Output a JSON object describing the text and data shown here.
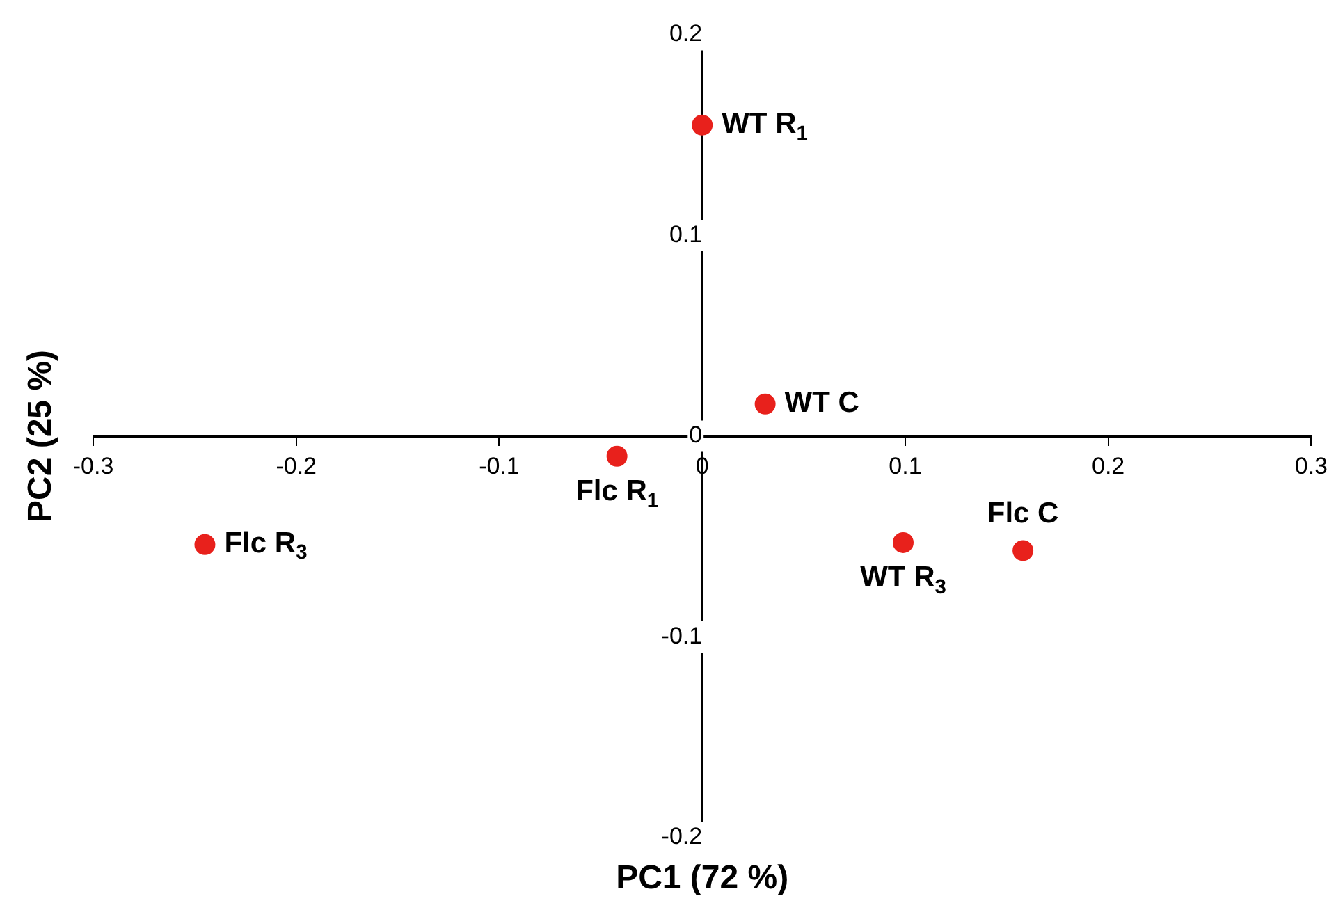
{
  "chart_data": {
    "type": "scatter",
    "xlabel": "PC1 (72 %)",
    "ylabel": "PC2 (25 %)",
    "x": [
      0.0,
      0.031,
      -0.042,
      -0.245,
      0.099,
      0.158
    ],
    "values": [
      0.155,
      0.016,
      -0.01,
      -0.054,
      -0.053,
      -0.057
    ],
    "color": "#e8211c",
    "marker": "circle",
    "grid": false,
    "legend": false,
    "xlim": [
      -0.3,
      0.3
    ],
    "xticks": [
      -0.3,
      -0.2,
      -0.1,
      0,
      0.1,
      0.2,
      0.3
    ],
    "ylim": [
      -0.2,
      0.2
    ],
    "yticks": [
      -0.2,
      -0.1,
      0,
      0.1,
      0.2
    ],
    "annotations": [
      {
        "text": "WT R$_{1}$",
        "x": 0.0,
        "y": 0.155
      },
      {
        "text": "WT C",
        "x": 0.031,
        "y": 0.016
      },
      {
        "text": "Flc R$_{1}$",
        "x": -0.042,
        "y": -0.01
      },
      {
        "text": "Flc R$_{3}$",
        "x": -0.245,
        "y": -0.054
      },
      {
        "text": "WT R$_{3}$",
        "x": 0.099,
        "y": -0.053
      },
      {
        "text": "Flc C",
        "x": 0.158,
        "y": -0.057
      }
    ]
  }
}
